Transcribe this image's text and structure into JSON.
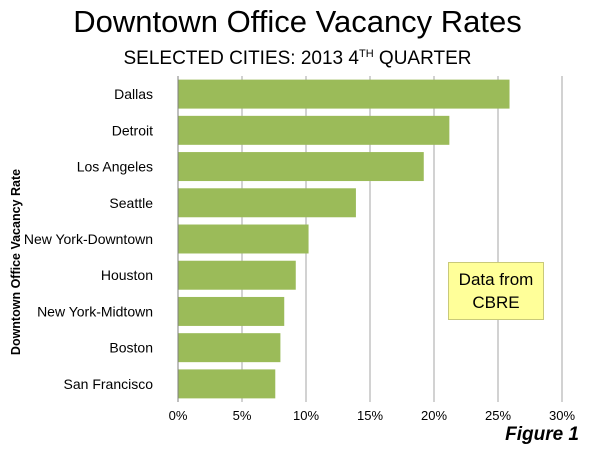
{
  "chart_data": {
    "type": "bar",
    "orientation": "horizontal",
    "title": "Downtown Office Vacancy Rates",
    "subtitle": {
      "prefix": "SELECTED CITIES: 2013 4",
      "superscript": "TH",
      "suffix": " QUARTER"
    },
    "ylabel": "Downtown Office Vacancy Rate",
    "categories": [
      "Dallas",
      "Detroit",
      "Los Angeles",
      "Seattle",
      "New York-Downtown",
      "Houston",
      "New York-Midtown",
      "Boston",
      "San Francisco"
    ],
    "values": [
      25.9,
      21.2,
      19.2,
      13.9,
      10.2,
      9.2,
      8.3,
      8.0,
      7.6
    ],
    "xlim": [
      0,
      30
    ],
    "xticks": [
      "0%",
      "5%",
      "10%",
      "15%",
      "20%",
      "25%",
      "30%"
    ],
    "grid": true,
    "bar_color": "#9bbb59"
  },
  "note": {
    "line1": "Data from",
    "line2": "CBRE"
  },
  "figure_label": "Figure 1"
}
